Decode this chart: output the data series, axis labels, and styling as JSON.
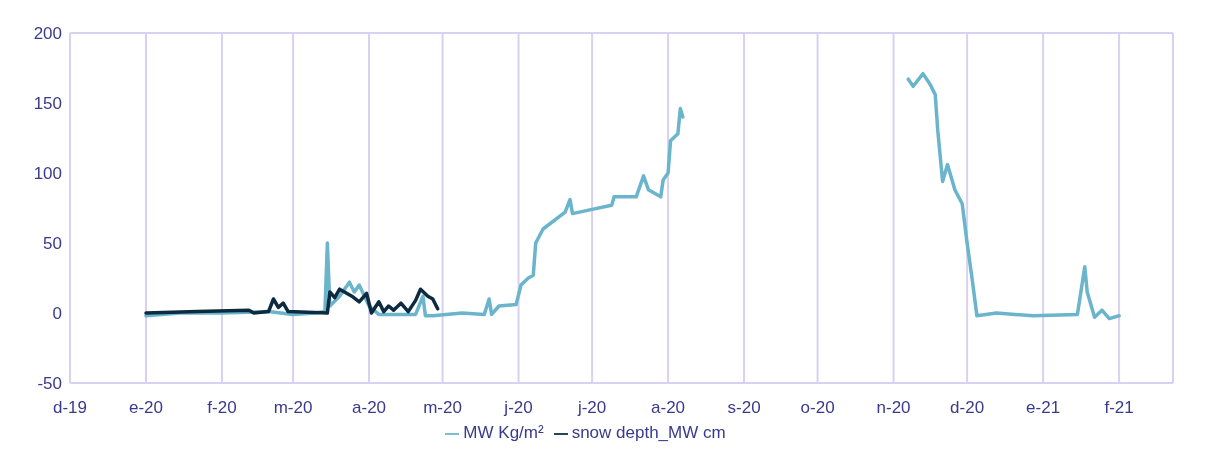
{
  "chart_data": {
    "type": "line",
    "xlim": [
      "2019-12-01",
      "2021-02-23"
    ],
    "xticks": [
      {
        "value": "2019-12-01",
        "label": "d-19"
      },
      {
        "value": "2020-01-01",
        "label": "e-20"
      },
      {
        "value": "2020-02-01",
        "label": "f-20"
      },
      {
        "value": "2020-03-01",
        "label": "m-20"
      },
      {
        "value": "2020-04-01",
        "label": "a-20"
      },
      {
        "value": "2020-05-01",
        "label": "m-20"
      },
      {
        "value": "2020-06-01",
        "label": "j-20"
      },
      {
        "value": "2020-07-01",
        "label": "j-20"
      },
      {
        "value": "2020-08-01",
        "label": "a-20"
      },
      {
        "value": "2020-09-01",
        "label": "s-20"
      },
      {
        "value": "2020-10-01",
        "label": "o-20"
      },
      {
        "value": "2020-11-01",
        "label": "n-20"
      },
      {
        "value": "2020-12-01",
        "label": "d-20"
      },
      {
        "value": "2021-01-01",
        "label": "e-21"
      },
      {
        "value": "2021-02-01",
        "label": "f-21"
      }
    ],
    "ylim": [
      -50,
      200
    ],
    "yticks": [
      -50,
      0,
      50,
      100,
      150,
      200
    ],
    "grid": true,
    "legend": "bottom",
    "marker": "none",
    "line_style": "solid",
    "series": [
      {
        "name": "MW Kg/m²",
        "color": "#6ab4cc",
        "x": [
          "2020-01-01",
          "2020-01-15",
          "2020-02-01",
          "2020-02-20",
          "2020-03-01",
          "2020-03-10",
          "2020-03-14",
          "2020-03-15",
          "2020-03-16",
          "2020-03-20",
          "2020-03-24",
          "2020-03-26",
          "2020-03-28",
          "2020-04-01",
          "2020-04-05",
          "2020-04-20",
          "2020-04-23",
          "2020-04-24",
          "2020-04-27",
          "2020-05-09",
          "2020-05-18",
          "2020-05-20",
          "2020-05-21",
          "2020-05-24",
          "2020-05-31",
          "2020-06-02",
          "2020-06-05",
          "2020-06-07",
          "2020-06-08",
          "2020-06-11",
          "2020-06-20",
          "2020-06-22",
          "2020-06-23",
          "2020-07-01",
          "2020-07-09",
          "2020-07-10",
          "2020-07-19",
          "2020-07-22",
          "2020-07-24",
          "2020-07-29",
          "2020-07-30",
          "2020-08-01",
          "2020-08-02",
          "2020-08-05",
          "2020-08-06",
          "2020-08-07",
          "2020-10-01",
          "2020-11-07",
          "2020-11-09",
          "2020-11-13",
          "2020-11-16",
          "2020-11-18",
          "2020-11-19",
          "2020-11-21",
          "2020-11-23",
          "2020-11-26",
          "2020-11-29",
          "2020-12-01",
          "2020-12-03",
          "2020-12-05",
          "2020-12-13",
          "2020-12-28",
          "2021-01-15",
          "2021-01-18",
          "2021-01-19",
          "2021-01-22",
          "2021-01-25",
          "2021-01-28",
          "2021-02-01"
        ],
        "values": [
          -2,
          0,
          0,
          1,
          -1,
          0,
          1,
          50,
          5,
          12,
          22,
          15,
          20,
          5,
          -1,
          -1,
          12,
          -2,
          -2,
          0,
          -1,
          10,
          -1,
          5,
          6,
          20,
          25,
          27,
          50,
          60,
          72,
          81,
          71,
          74,
          77,
          83,
          83,
          98,
          88,
          83,
          95,
          100,
          123,
          128,
          146,
          140,
          null,
          167,
          162,
          171,
          163,
          156,
          131,
          94,
          106,
          88,
          78,
          50,
          25,
          -2,
          0,
          -2,
          -1,
          33,
          15,
          -3,
          2,
          -4,
          -2
        ]
      },
      {
        "name": "snow depth_MW cm",
        "color": "#0d2b40",
        "x": [
          "2020-01-01",
          "2020-01-22",
          "2020-02-12",
          "2020-02-14",
          "2020-02-20",
          "2020-02-22",
          "2020-02-24",
          "2020-02-26",
          "2020-02-28",
          "2020-03-15",
          "2020-03-16",
          "2020-03-18",
          "2020-03-20",
          "2020-03-25",
          "2020-03-28",
          "2020-03-31",
          "2020-04-02",
          "2020-04-05",
          "2020-04-07",
          "2020-04-09",
          "2020-04-11",
          "2020-04-14",
          "2020-04-17",
          "2020-04-20",
          "2020-04-22",
          "2020-04-25",
          "2020-04-27",
          "2020-04-29"
        ],
        "values": [
          0,
          1,
          2,
          0,
          1,
          10,
          4,
          7,
          1,
          0,
          15,
          11,
          17,
          12,
          8,
          14,
          0,
          8,
          1,
          5,
          2,
          7,
          1,
          9,
          17,
          12,
          10,
          3
        ]
      }
    ]
  }
}
